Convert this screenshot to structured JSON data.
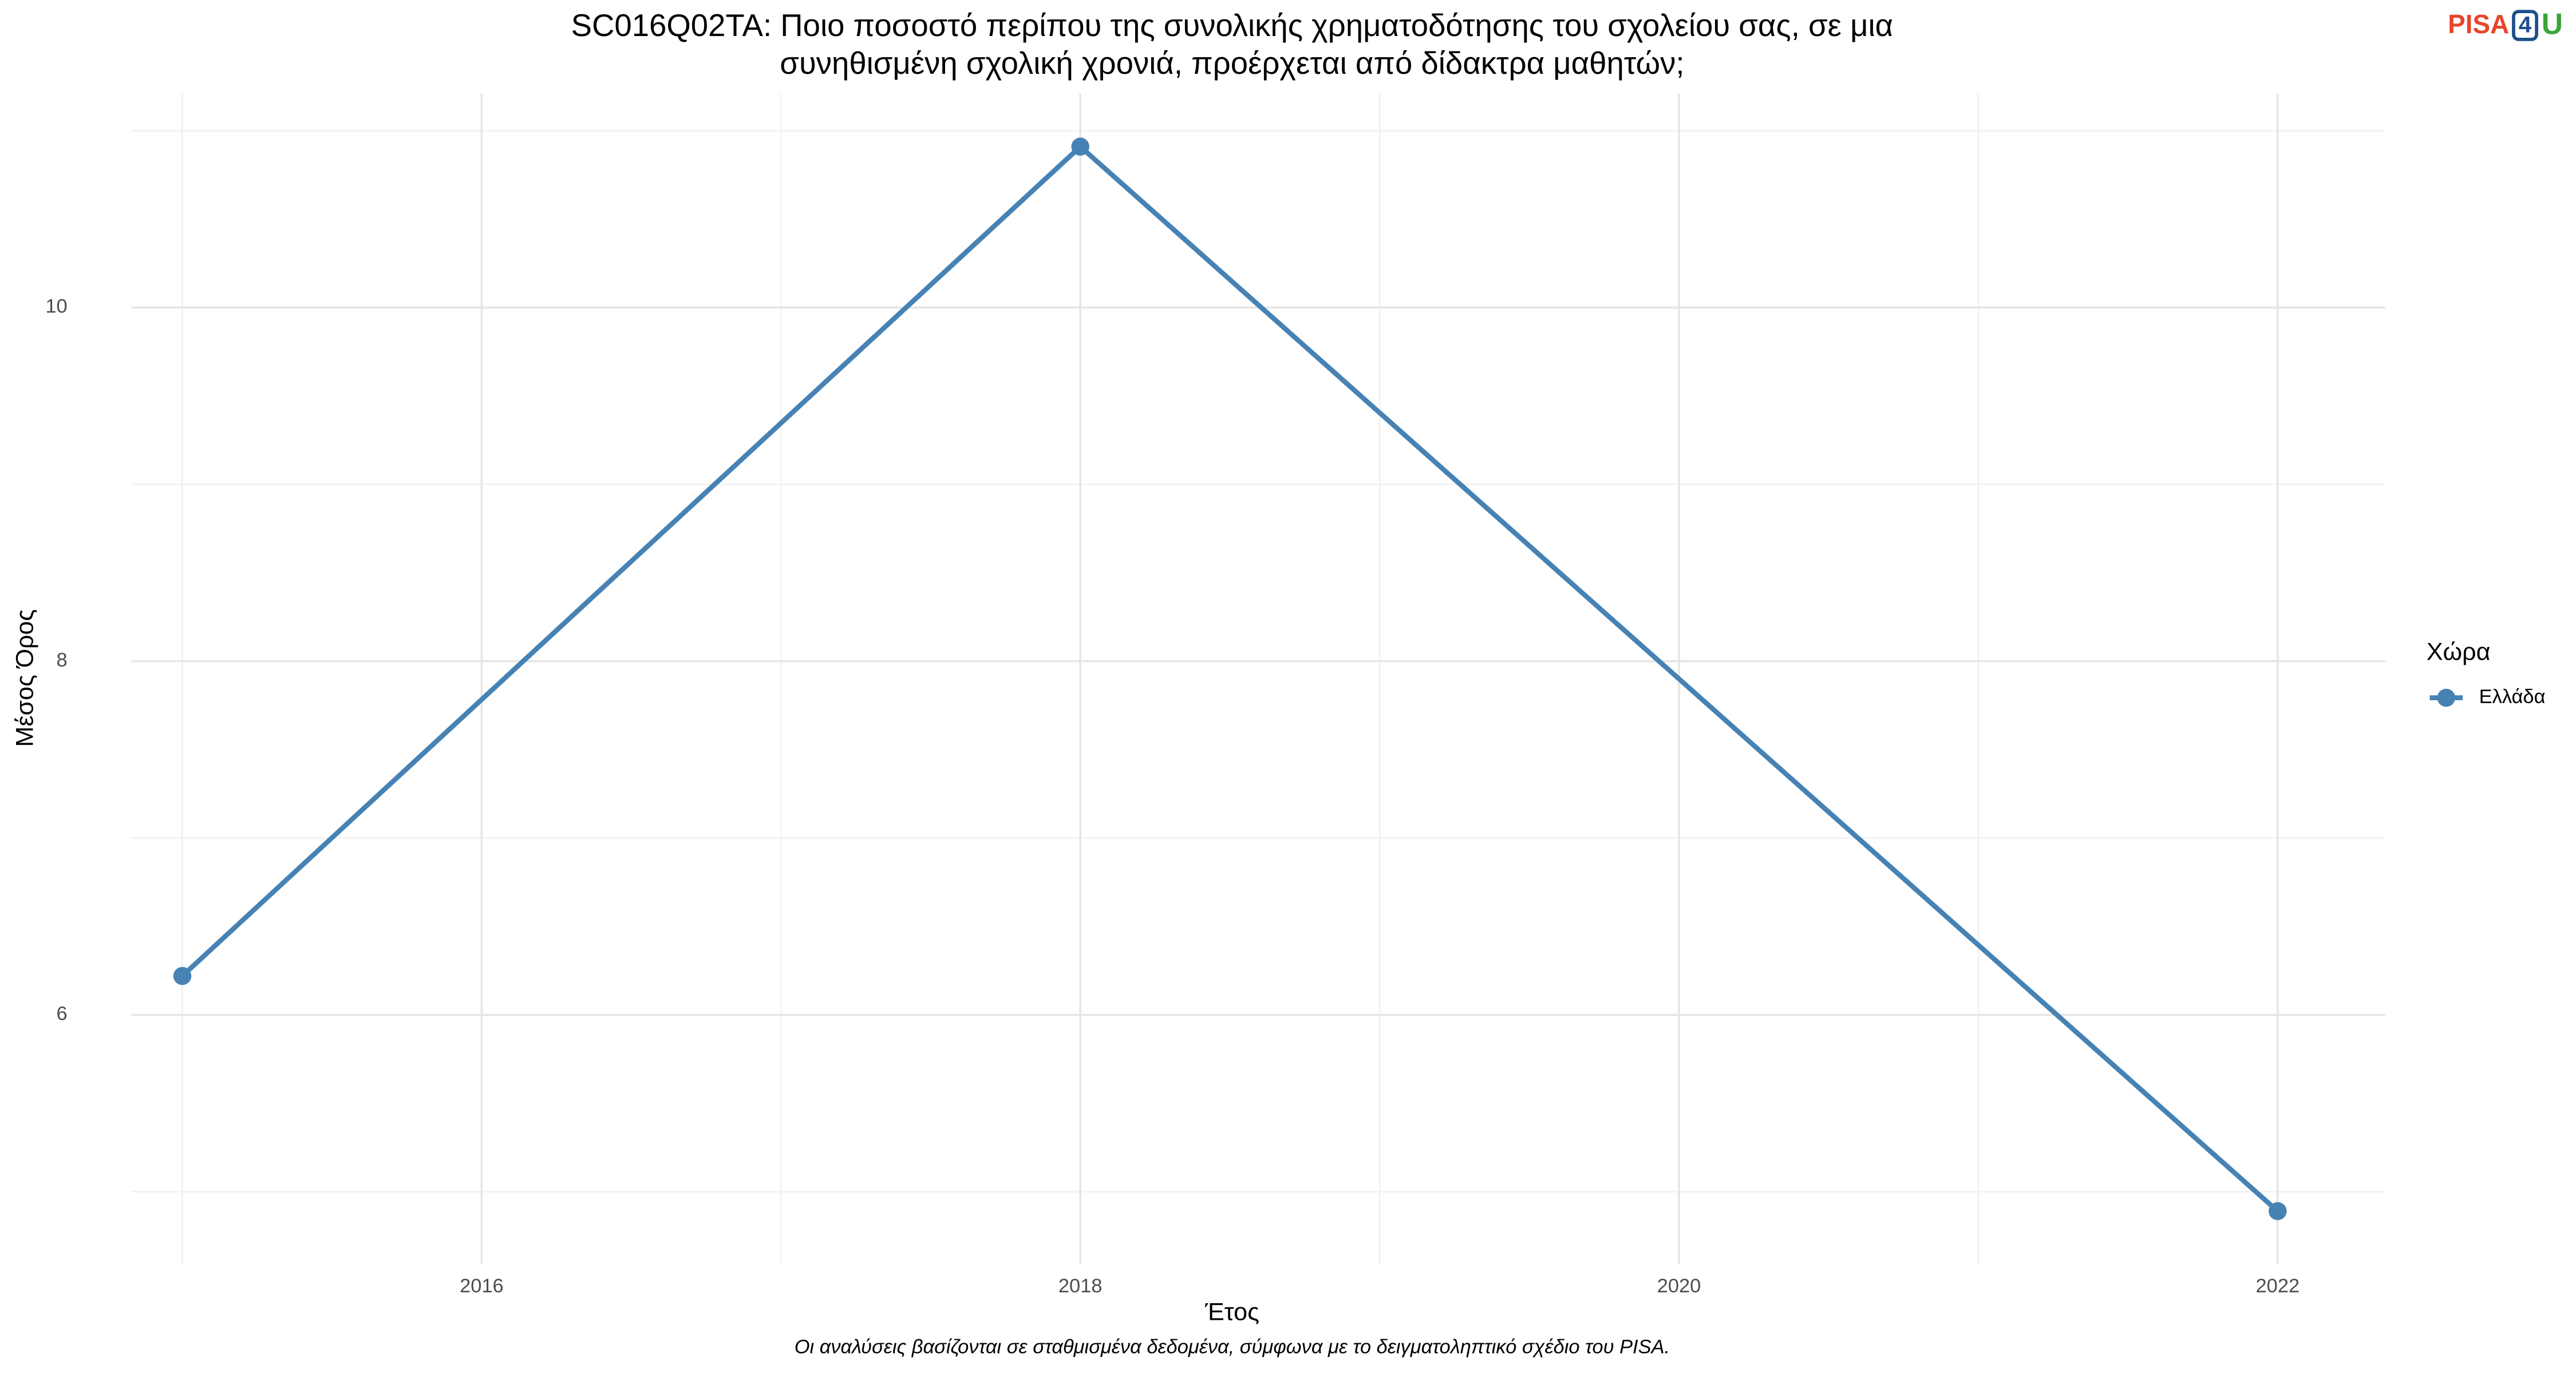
{
  "chart_data": {
    "type": "line",
    "title": [
      "SC016Q02TA: Ποιο ποσοστό περίπου της συνολικής χρηματοδότησης του σχολείου σας, σε μια",
      "συνηθισμένη σχολική χρονιά, προέρχεται από δίδακτρα μαθητών;"
    ],
    "x_label": "Έτος",
    "y_label": "Μέσος Όρος",
    "x": [
      2015,
      2018,
      2022
    ],
    "series": [
      {
        "name": "Ελλάδα",
        "color": "#4682b4",
        "values": [
          6.22,
          10.91,
          4.89
        ]
      }
    ],
    "xlim": [
      2014.83,
      2022.36
    ],
    "xticks": [
      2016,
      2018,
      2020,
      2022
    ],
    "ylim": [
      4.59,
      11.21
    ],
    "yticks": [
      6,
      8,
      10
    ],
    "grid": true,
    "legend_title": "Χώρα",
    "legend_position": "right",
    "caption": "Οι αναλύσεις βασίζονται σε σταθμισμένα δεδομένα, σύμφωνα με το δειγματοληπτικό σχέδιο του PISA."
  },
  "logo": {
    "parts": [
      "PISA",
      "4",
      "U"
    ]
  }
}
